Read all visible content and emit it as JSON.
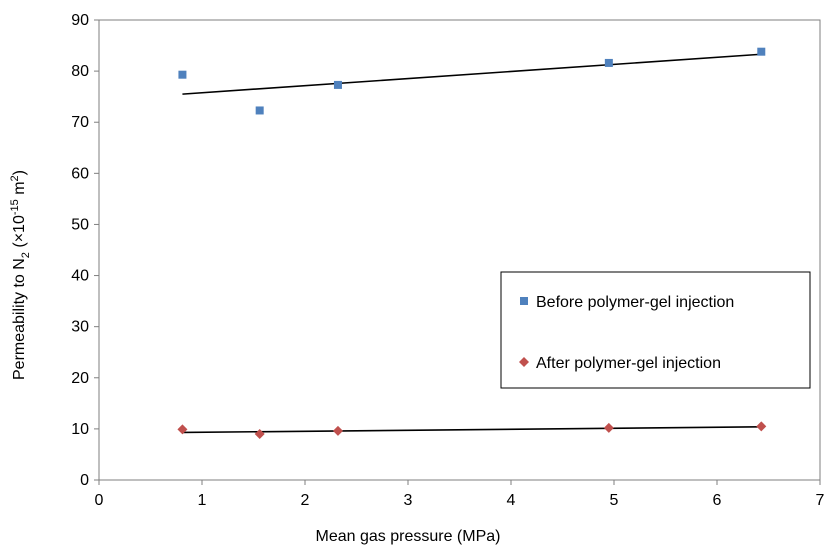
{
  "chart_data": {
    "type": "scatter",
    "title": "",
    "xlabel": "Mean gas pressure (MPa)",
    "ylabel": {
      "prefix": "Permeability to N",
      "sub": "2",
      "mid": " (×10",
      "sup1": "-15",
      "unit": " m",
      "sup2": "2",
      "suffix": ")"
    },
    "xlim": [
      0,
      7
    ],
    "ylim": [
      0,
      90
    ],
    "x_ticks": [
      0,
      1,
      2,
      3,
      4,
      5,
      6,
      7
    ],
    "y_ticks": [
      0,
      10,
      20,
      30,
      40,
      50,
      60,
      70,
      80,
      90
    ],
    "grid": false,
    "legend_position": "right-center",
    "series": [
      {
        "name": "Before polymer-gel injection",
        "marker": "square",
        "color": "#4F81BD",
        "x": [
          0.81,
          1.56,
          2.32,
          4.95,
          6.43
        ],
        "y": [
          79.3,
          72.3,
          77.3,
          81.6,
          83.8
        ],
        "trendline": {
          "x": [
            0.81,
            6.43
          ],
          "y": [
            75.5,
            83.3
          ]
        }
      },
      {
        "name": "After polymer-gel injection",
        "marker": "diamond",
        "color": "#C0504D",
        "x": [
          0.81,
          1.56,
          2.32,
          4.95,
          6.43
        ],
        "y": [
          9.9,
          9.0,
          9.6,
          10.2,
          10.5
        ],
        "trendline": {
          "x": [
            0.81,
            6.43
          ],
          "y": [
            9.3,
            10.4
          ]
        }
      }
    ]
  }
}
